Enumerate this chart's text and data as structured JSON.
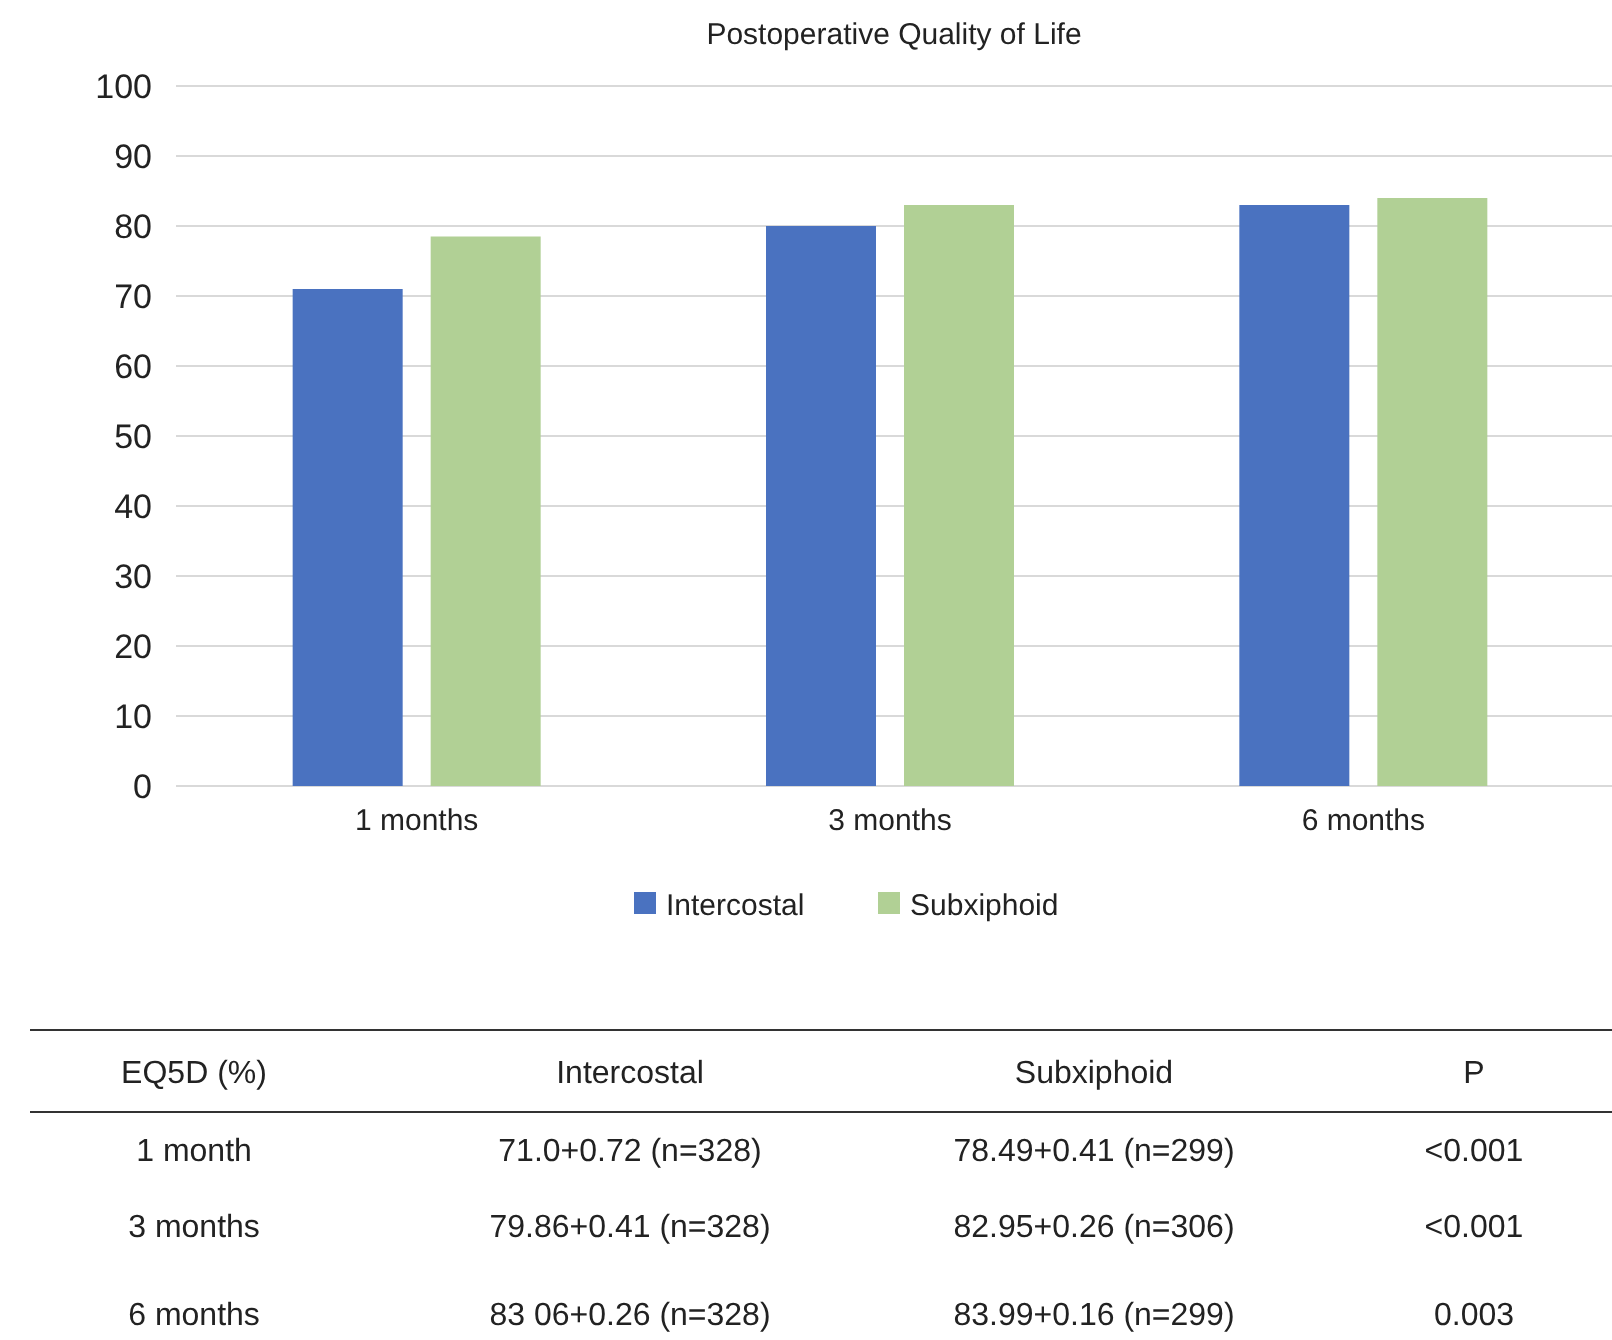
{
  "chart_data": {
    "type": "bar",
    "title": "Postoperative Quality of Life",
    "categories": [
      "1 months",
      "3 months",
      "6 months"
    ],
    "series": [
      {
        "name": "Intercostal",
        "color": "#4a72c0",
        "values": [
          71,
          80,
          83
        ]
      },
      {
        "name": "Subxiphoid",
        "color": "#b1d095",
        "values": [
          78.5,
          83,
          84
        ]
      }
    ],
    "ylim": [
      0,
      100
    ],
    "yticks": [
      0,
      10,
      20,
      30,
      40,
      50,
      60,
      70,
      80,
      90,
      100
    ],
    "grid": "y",
    "legend": "bottom",
    "annotations": [
      "EQ5D (%)",
      "P",
      "1 month",
      "71.0+0.72 (n=328)",
      "78.49+0.41 (n=299)",
      "<0.001",
      "3 months",
      "79.86+0.41 (n=328)",
      "82.95+0.26 (n=306)",
      "<0.001",
      "6 months",
      "83 06+0.26 (n=328)",
      "83.99+0.16 (n=299)",
      "0.003"
    ]
  }
}
